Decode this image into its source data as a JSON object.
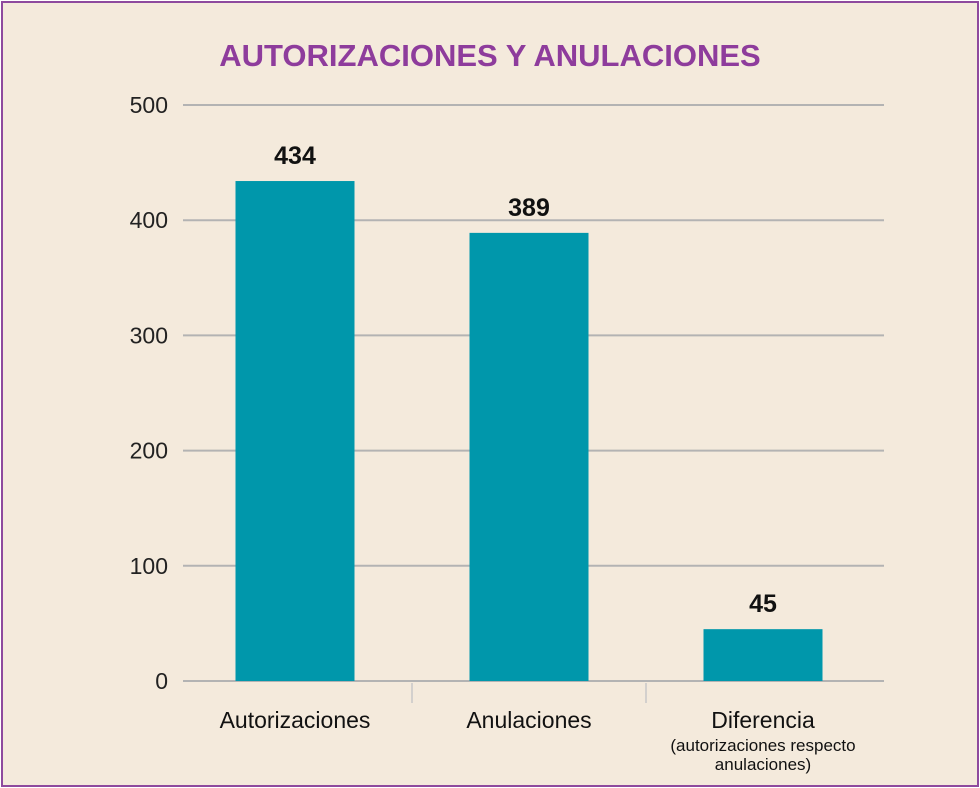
{
  "chart_data": {
    "type": "bar",
    "title": "AUTORIZACIONES Y ANULACIONES",
    "categories": [
      "Autorizaciones",
      "Anulaciones",
      "Diferencia"
    ],
    "category_sublabels": [
      "",
      "",
      "(autorizaciones respecto\nanulaciones)"
    ],
    "values": [
      434,
      389,
      45
    ],
    "value_labels": [
      "434",
      "389",
      "45"
    ],
    "ylim": [
      0,
      500
    ],
    "yticks": [
      0,
      100,
      200,
      300,
      400,
      500
    ],
    "grid": true,
    "bar_color": "#0097ab",
    "grid_color": "#b3b3b3"
  }
}
